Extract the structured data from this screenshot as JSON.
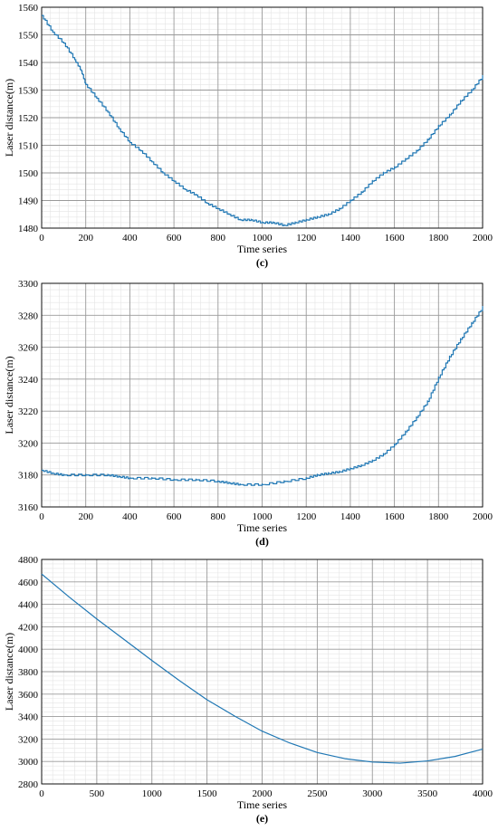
{
  "chart_data": [
    {
      "type": "line",
      "panel_label": "(c)",
      "xlabel": "Time series",
      "ylabel": "Laser distance(m)",
      "xlim": [
        0,
        2000
      ],
      "ylim": [
        1480,
        1560
      ],
      "xticks": [
        0,
        200,
        400,
        600,
        800,
        1000,
        1200,
        1400,
        1600,
        1800,
        2000
      ],
      "yticks": [
        1480,
        1490,
        1500,
        1510,
        1520,
        1530,
        1540,
        1550,
        1560
      ],
      "grid": true,
      "series": [
        {
          "color": "#1f77b4",
          "step": true,
          "x": [
            0,
            50,
            100,
            150,
            180,
            200,
            250,
            300,
            350,
            400,
            450,
            500,
            550,
            600,
            650,
            700,
            750,
            800,
            850,
            900,
            950,
            1000,
            1050,
            1100,
            1150,
            1200,
            1250,
            1300,
            1350,
            1400,
            1450,
            1500,
            1550,
            1600,
            1650,
            1700,
            1750,
            1800,
            1850,
            1900,
            1950,
            2000
          ],
          "y": [
            1557,
            1551,
            1547,
            1541,
            1537,
            1532,
            1527,
            1522,
            1516,
            1511,
            1508,
            1504,
            1500,
            1497,
            1494,
            1492,
            1489,
            1487,
            1485,
            1483,
            1483,
            1482,
            1482,
            1481,
            1482,
            1483,
            1484,
            1485,
            1487,
            1490,
            1493,
            1497,
            1500,
            1502,
            1505,
            1508,
            1512,
            1517,
            1521,
            1526,
            1530,
            1535
          ]
        }
      ]
    },
    {
      "type": "line",
      "panel_label": "(d)",
      "xlabel": "Time series",
      "ylabel": "Laser distance(m)",
      "xlim": [
        0,
        2000
      ],
      "ylim": [
        3160,
        3300
      ],
      "xticks": [
        0,
        200,
        400,
        600,
        800,
        1000,
        1200,
        1400,
        1600,
        1800,
        2000
      ],
      "yticks": [
        3160,
        3180,
        3200,
        3220,
        3240,
        3260,
        3280,
        3300
      ],
      "grid": true,
      "series": [
        {
          "color": "#1f77b4",
          "step": true,
          "x": [
            0,
            50,
            100,
            200,
            300,
            350,
            400,
            500,
            600,
            700,
            800,
            850,
            900,
            1000,
            1100,
            1200,
            1250,
            1300,
            1350,
            1400,
            1450,
            1500,
            1550,
            1600,
            1650,
            1700,
            1750,
            1800,
            1850,
            1900,
            1950,
            2000
          ],
          "y": [
            3183,
            3181,
            3180,
            3180,
            3180,
            3179,
            3178,
            3178,
            3177,
            3177,
            3176,
            3175,
            3174,
            3174,
            3176,
            3178,
            3180,
            3181,
            3182,
            3184,
            3186,
            3189,
            3193,
            3199,
            3207,
            3216,
            3226,
            3241,
            3254,
            3265,
            3275,
            3285
          ]
        }
      ]
    },
    {
      "type": "line",
      "panel_label": "(e)",
      "xlabel": "Time series",
      "ylabel": "Laser distance(m)",
      "xlim": [
        0,
        4000
      ],
      "ylim": [
        2800,
        4800
      ],
      "xticks": [
        0,
        500,
        1000,
        1500,
        2000,
        2500,
        3000,
        3500,
        4000
      ],
      "yticks": [
        2800,
        3000,
        3200,
        3400,
        3600,
        3800,
        4000,
        4200,
        4400,
        4600,
        4800
      ],
      "grid": true,
      "series": [
        {
          "color": "#1f77b4",
          "step": false,
          "x": [
            0,
            250,
            500,
            750,
            1000,
            1250,
            1500,
            1750,
            2000,
            2250,
            2500,
            2750,
            3000,
            3250,
            3500,
            3750,
            4000
          ],
          "y": [
            4670,
            4465,
            4270,
            4085,
            3900,
            3720,
            3550,
            3405,
            3270,
            3165,
            3080,
            3025,
            2995,
            2985,
            3005,
            3045,
            3110
          ]
        }
      ]
    }
  ]
}
